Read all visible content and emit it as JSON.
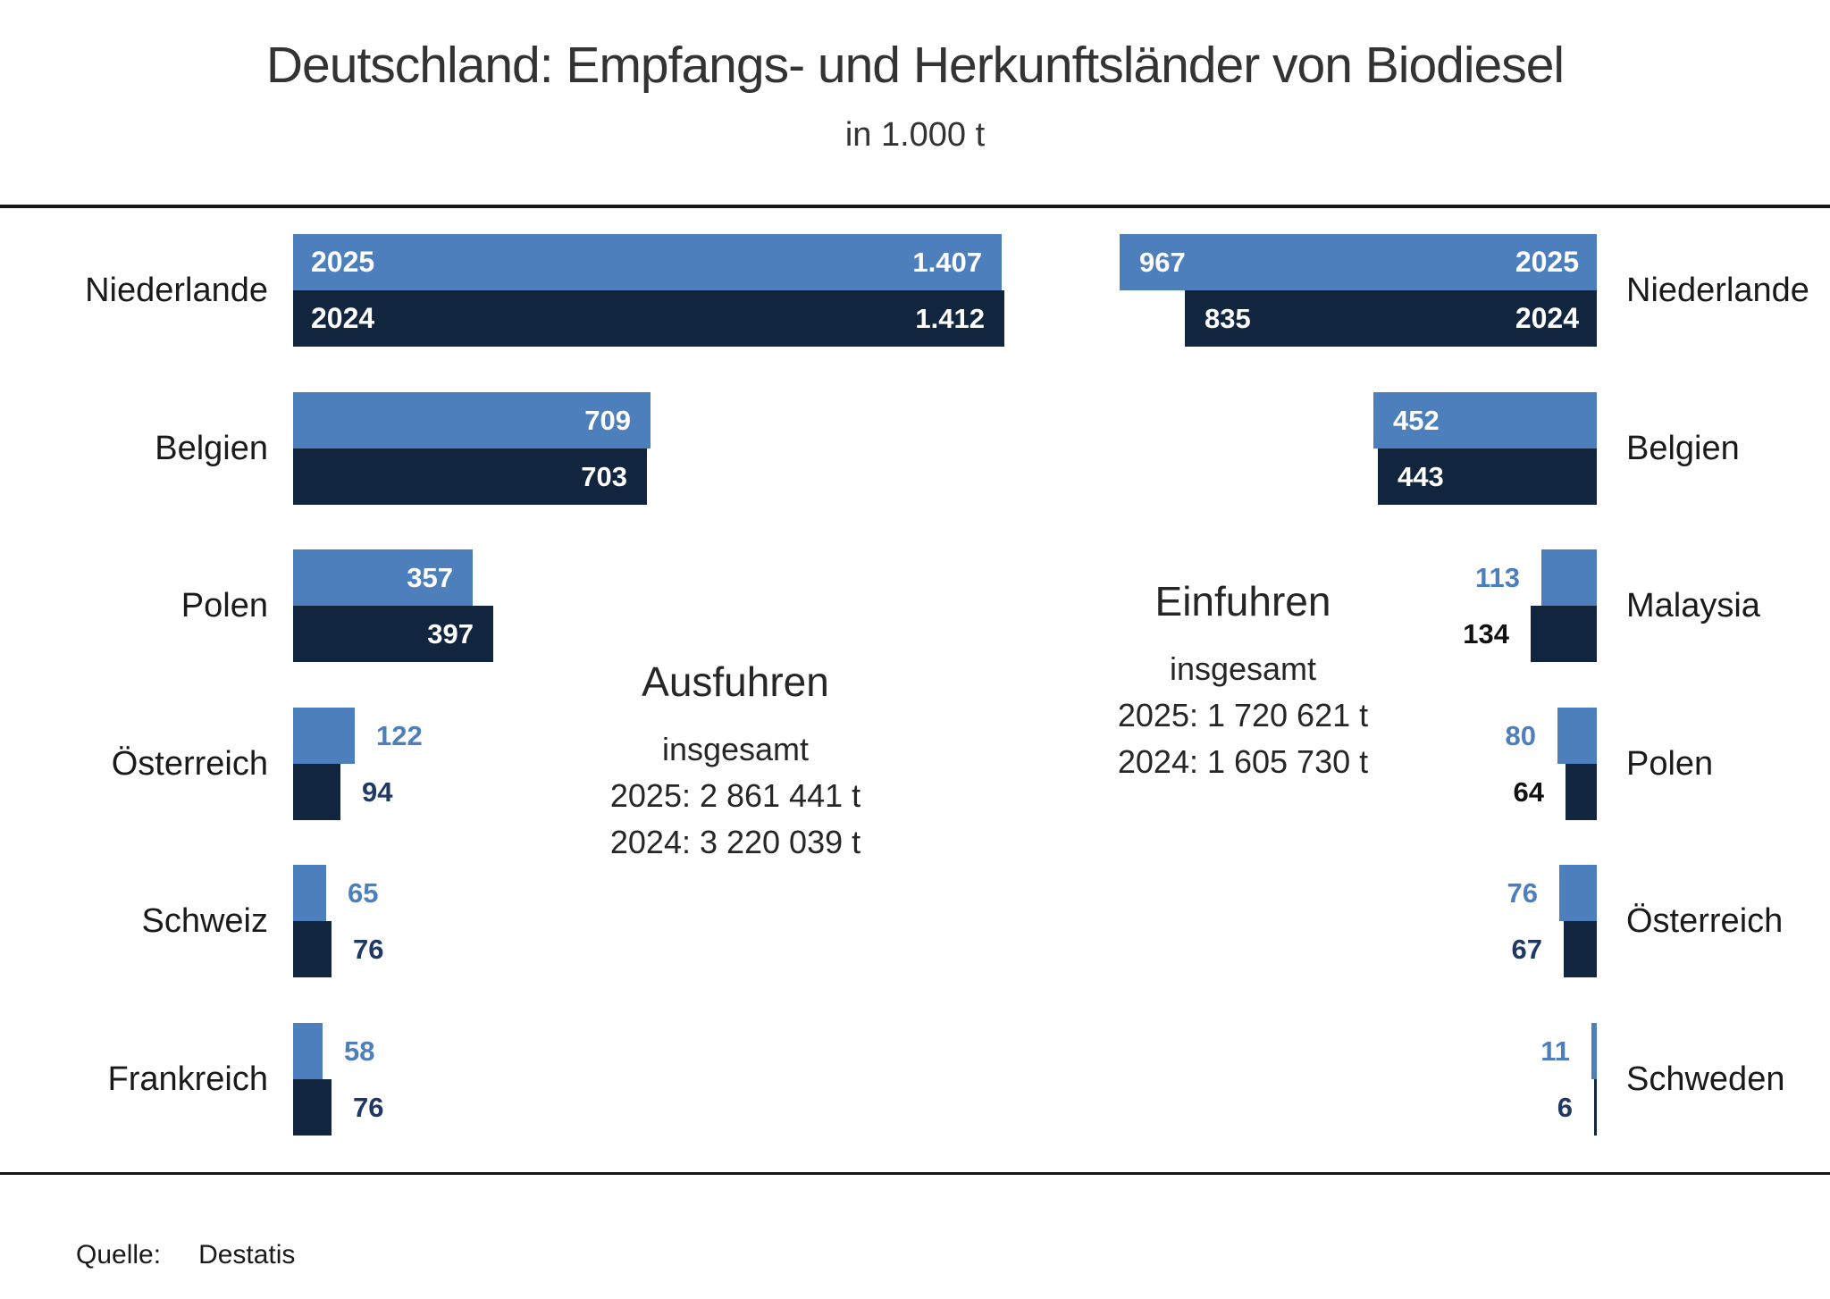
{
  "title": "Deutschland: Empfangs- und Herkunftsländer von Biodiesel",
  "subtitle": "in 1.000 t",
  "source": {
    "label": "Quelle:",
    "value": "Destatis"
  },
  "colors": {
    "bar_2025": "#4D7FBC",
    "bar_2024": "#12253F",
    "label_blue": "#4D7FBC",
    "label_navy": "#1F3864",
    "label_black": "#111111",
    "label_white": "#FFFFFF"
  },
  "chart_data": [
    {
      "type": "bar",
      "id": "ausfuhren",
      "title": "Ausfuhren",
      "totals_label": "insgesamt",
      "totals": [
        "2025: 2 861 441 t",
        "2024: 3 220 039 t"
      ],
      "unit": "1.000 t",
      "orientation": "horizontal, anchored left",
      "series_names": [
        "2025",
        "2024"
      ],
      "categories": [
        "Niederlande",
        "Belgien",
        "Polen",
        "Österreich",
        "Schweiz",
        "Frankreich"
      ],
      "rows": [
        {
          "category": "Niederlande",
          "values": [
            1407,
            1412
          ],
          "labels": [
            "1.407",
            "1.412"
          ],
          "label_pos": "inside",
          "show_year_labels": true
        },
        {
          "category": "Belgien",
          "values": [
            709,
            703
          ],
          "labels": [
            "709",
            "703"
          ],
          "label_pos": "inside",
          "show_year_labels": false
        },
        {
          "category": "Polen",
          "values": [
            357,
            397
          ],
          "labels": [
            "357",
            "397"
          ],
          "label_pos": "inside",
          "show_year_labels": false
        },
        {
          "category": "Österreich",
          "values": [
            122,
            94
          ],
          "labels": [
            "122",
            "94"
          ],
          "label_pos": "outside",
          "label_2024_color": "navy",
          "show_year_labels": false
        },
        {
          "category": "Schweiz",
          "values": [
            65,
            76
          ],
          "labels": [
            "65",
            "76"
          ],
          "label_pos": "outside",
          "label_2024_color": "navy",
          "show_year_labels": false
        },
        {
          "category": "Frankreich",
          "values": [
            58,
            76
          ],
          "labels": [
            "58",
            "76"
          ],
          "label_pos": "outside",
          "label_2024_color": "navy",
          "show_year_labels": false
        }
      ]
    },
    {
      "type": "bar",
      "id": "einfuhren",
      "title": "Einfuhren",
      "totals_label": "insgesamt",
      "totals": [
        "2025: 1 720 621 t",
        "2024: 1 605 730 t"
      ],
      "unit": "1.000 t",
      "orientation": "horizontal, anchored right",
      "series_names": [
        "2025",
        "2024"
      ],
      "categories": [
        "Niederlande",
        "Belgien",
        "Malaysia",
        "Polen",
        "Österreich",
        "Schweden"
      ],
      "rows": [
        {
          "category": "Niederlande",
          "values": [
            967,
            835
          ],
          "labels": [
            "967",
            "835"
          ],
          "label_pos": "inside",
          "show_year_labels": true
        },
        {
          "category": "Belgien",
          "values": [
            452,
            443
          ],
          "labels": [
            "452",
            "443"
          ],
          "label_pos": "inside",
          "show_year_labels": false
        },
        {
          "category": "Malaysia",
          "values": [
            113,
            134
          ],
          "labels": [
            "113",
            "134"
          ],
          "label_pos": "outside",
          "label_2024_color": "black",
          "show_year_labels": false
        },
        {
          "category": "Polen",
          "values": [
            80,
            64
          ],
          "labels": [
            "80",
            "64"
          ],
          "label_pos": "outside",
          "label_2024_color": "black",
          "show_year_labels": false
        },
        {
          "category": "Österreich",
          "values": [
            76,
            67
          ],
          "labels": [
            "76",
            "67"
          ],
          "label_pos": "outside",
          "label_2024_color": "navy",
          "show_year_labels": false
        },
        {
          "category": "Schweden",
          "values": [
            11,
            6
          ],
          "labels": [
            "11",
            "6"
          ],
          "label_pos": "outside",
          "label_2024_color": "navy",
          "show_year_labels": false
        }
      ]
    }
  ]
}
